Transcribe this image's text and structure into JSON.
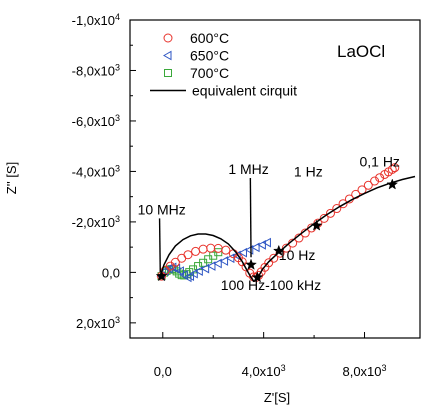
{
  "chart_data": {
    "type": "scatter",
    "panel_label": "LaOCl",
    "xlabel": "Z'[S]",
    "ylabel": "Z'' [S]",
    "xlim": [
      -1300,
      10200
    ],
    "ylim": [
      -10000,
      2600
    ],
    "x_ticks": [
      {
        "value": 0,
        "label": "0,0"
      },
      {
        "value": 4000,
        "label": "4,0x10",
        "exp": "3"
      },
      {
        "value": 8000,
        "label": "8,0x10",
        "exp": "3"
      }
    ],
    "y_ticks": [
      {
        "value": -10000,
        "label": "-1,0x10",
        "exp": "4"
      },
      {
        "value": -8000,
        "label": "-8,0x10",
        "exp": "3"
      },
      {
        "value": -6000,
        "label": "-6,0x10",
        "exp": "3"
      },
      {
        "value": -4000,
        "label": "-4,0x10",
        "exp": "3"
      },
      {
        "value": -2000,
        "label": "-2,0x10",
        "exp": "3"
      },
      {
        "value": 0,
        "label": "0,0"
      },
      {
        "value": 2000,
        "label": "2,0x10",
        "exp": "3"
      }
    ],
    "legend": {
      "position": "top-left",
      "entries": [
        {
          "label": "600°C",
          "marker": "circle",
          "color": "#e8322b"
        },
        {
          "label": "650°C",
          "marker": "triangle-left",
          "color": "#2e56c4"
        },
        {
          "label": "700°C",
          "marker": "square",
          "color": "#3aa83a"
        },
        {
          "label": "equivalent cirquit",
          "marker": "line",
          "color": "#000000"
        }
      ]
    },
    "series": [
      {
        "name": "600°C",
        "color": "#e8322b",
        "marker": "circle",
        "x": [
          -50,
          100,
          300,
          500,
          750,
          1000,
          1300,
          1600,
          1900,
          2200,
          2500,
          2800,
          3000,
          3150,
          3300,
          3450,
          3600,
          3700,
          3800,
          3900,
          4050,
          4200,
          4400,
          4650,
          4900,
          5150,
          5400,
          5650,
          5900,
          6150,
          6400,
          6650,
          6900,
          7150,
          7400,
          7650,
          7900,
          8150,
          8400,
          8600,
          8800,
          8950,
          9100,
          9200
        ],
        "y": [
          150,
          -80,
          -250,
          -400,
          -560,
          -700,
          -830,
          -920,
          -960,
          -950,
          -880,
          -740,
          -580,
          -420,
          -220,
          30,
          180,
          200,
          120,
          -20,
          -200,
          -380,
          -560,
          -760,
          -960,
          -1160,
          -1360,
          -1560,
          -1760,
          -1950,
          -2140,
          -2340,
          -2530,
          -2720,
          -2910,
          -3090,
          -3270,
          -3450,
          -3620,
          -3750,
          -3880,
          -3980,
          -4080,
          -4150
        ]
      },
      {
        "name": "650°C",
        "color": "#2e56c4",
        "marker": "triangle-left",
        "x": [
          -50,
          100,
          250,
          400,
          550,
          700,
          850,
          1000,
          1100,
          1250,
          1450,
          1700,
          1950,
          2200,
          2450,
          2700,
          2950,
          3200,
          3450,
          3700,
          3950,
          4150
        ],
        "y": [
          150,
          -50,
          -150,
          -200,
          -150,
          -50,
          100,
          200,
          150,
          50,
          -50,
          -150,
          -250,
          -350,
          -450,
          -560,
          -670,
          -780,
          -890,
          -990,
          -1090,
          -1180
        ]
      },
      {
        "name": "700°C",
        "color": "#3aa83a",
        "marker": "square",
        "x": [
          -50,
          50,
          150,
          250,
          350,
          450,
          550,
          650,
          750,
          850,
          950,
          1050,
          1200,
          1400,
          1600,
          1800,
          2000,
          2200
        ],
        "y": [
          150,
          10,
          -60,
          -110,
          -130,
          -110,
          -40,
          50,
          110,
          120,
          70,
          -10,
          -120,
          -250,
          -380,
          -520,
          -660,
          -800
        ]
      },
      {
        "name": "equivalent cirquit",
        "color": "#000000",
        "marker": "line",
        "x": [
          -100,
          50,
          250,
          500,
          800,
          1100,
          1400,
          1700,
          2000,
          2300,
          2600,
          2900,
          3150,
          3350,
          3500,
          3600,
          3700,
          3800,
          3950,
          4200,
          4500,
          5000,
          5500,
          6000,
          6500,
          7000,
          7500,
          8000,
          8500,
          9000,
          9500,
          10000
        ],
        "y": [
          150,
          -300,
          -700,
          -1050,
          -1300,
          -1450,
          -1520,
          -1520,
          -1460,
          -1330,
          -1130,
          -800,
          -430,
          -60,
          200,
          350,
          320,
          150,
          -120,
          -420,
          -700,
          -1150,
          -1550,
          -1930,
          -2280,
          -2600,
          -2880,
          -3130,
          -3350,
          -3530,
          -3680,
          -3800
        ]
      }
    ],
    "markers": {
      "symbol": "star",
      "x": [
        -50,
        3500,
        3750,
        4600,
        6100,
        9100
      ],
      "y": [
        150,
        -300,
        200,
        -850,
        -1850,
        -3480
      ]
    },
    "annotations": [
      {
        "text": "10 MHz",
        "x": -1000,
        "y": -2300,
        "pointer": [
          -100,
          0
        ]
      },
      {
        "text": "1 MHz",
        "x": 2600,
        "y": -3900,
        "pointer": [
          3500,
          -600
        ]
      },
      {
        "text": "1 Hz",
        "x": 5200,
        "y": -3800
      },
      {
        "text": "0,1 Hz",
        "x": 7800,
        "y": -4200
      },
      {
        "text": "10 Hz",
        "x": 4600,
        "y": -500
      },
      {
        "text": "100 Hz-100 kHz",
        "x": 2300,
        "y": 700
      }
    ]
  }
}
